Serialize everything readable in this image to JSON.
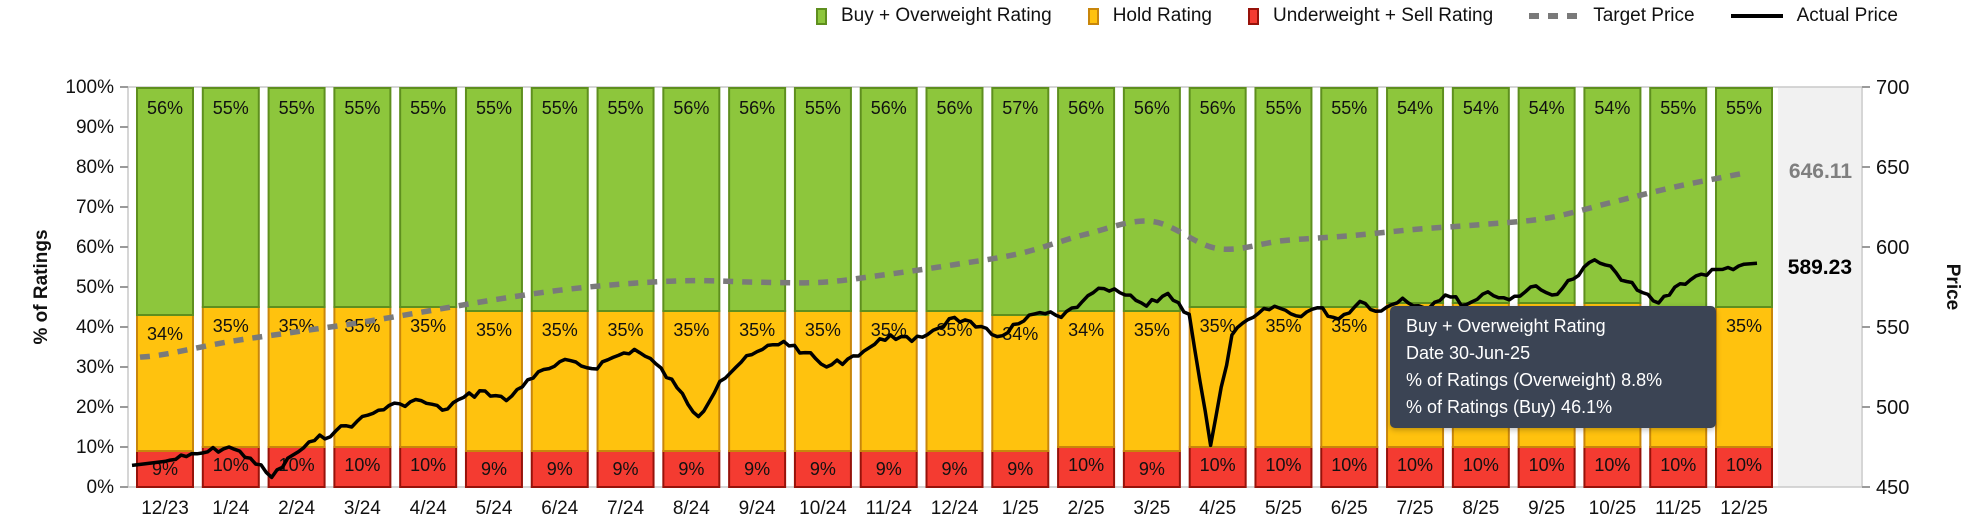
{
  "legend": {
    "items": [
      {
        "label": "Buy + Overweight Rating",
        "marker": "bar-swatch-icon",
        "type": "bar",
        "color": "#8dc63c",
        "border": "#5e8f1e"
      },
      {
        "label": "Hold Rating",
        "marker": "bar-swatch-icon",
        "type": "bar",
        "color": "#ffc20e",
        "border": "#c8860b"
      },
      {
        "label": "Underweight + Sell Rating",
        "marker": "bar-swatch-icon",
        "type": "bar",
        "color": "#f43b31",
        "border": "#97120a"
      },
      {
        "label": "Target Price",
        "marker": "dashed-line-icon",
        "type": "dash",
        "color": "#7a7a7a"
      },
      {
        "label": "Actual Price",
        "marker": "solid-line-icon",
        "type": "line",
        "color": "#000000"
      }
    ]
  },
  "tooltip": {
    "lines": [
      "Buy + Overweight Rating",
      "Date 30-Jun-25",
      "% of Ratings (Overweight) 8.8%",
      "% of Ratings (Buy) 46.1%"
    ],
    "bg": "#3b4454",
    "text_color": "#ffffff"
  },
  "callouts": {
    "target_price": "646.11",
    "target_color": "#7f7f7f",
    "actual_price": "589.23",
    "actual_color": "#000000"
  },
  "chart_data": {
    "type": "bar",
    "subtype": "stacked-bars-with-price-lines",
    "categories": [
      "12/23",
      "1/24",
      "2/24",
      "3/24",
      "4/24",
      "5/24",
      "6/24",
      "7/24",
      "8/24",
      "9/24",
      "10/24",
      "11/24",
      "12/24",
      "1/25",
      "2/25",
      "3/25",
      "4/25",
      "5/25",
      "6/25",
      "7/25",
      "8/25",
      "9/25",
      "10/25",
      "11/25",
      "12/25"
    ],
    "series": [
      {
        "name": "Buy + Overweight Rating",
        "render": "bar",
        "color": "#8dc63c",
        "border": "#5e8f1e",
        "values": [
          56,
          55,
          55,
          55,
          55,
          55,
          55,
          55,
          56,
          56,
          55,
          56,
          56,
          57,
          56,
          56,
          56,
          55,
          55,
          54,
          54,
          54,
          54,
          55,
          55
        ]
      },
      {
        "name": "Hold Rating",
        "render": "bar",
        "color": "#ffc20e",
        "border": "#c8860b",
        "values": [
          34,
          35,
          35,
          35,
          35,
          35,
          35,
          35,
          35,
          35,
          35,
          35,
          35,
          34,
          34,
          35,
          35,
          35,
          35,
          36,
          36,
          36,
          36,
          35,
          35
        ]
      },
      {
        "name": "Underweight + Sell Rating",
        "render": "bar",
        "color": "#f43b31",
        "border": "#97120a",
        "values": [
          9,
          10,
          10,
          10,
          10,
          9,
          9,
          9,
          9,
          9,
          9,
          9,
          9,
          9,
          10,
          9,
          10,
          10,
          10,
          10,
          10,
          10,
          10,
          10,
          10
        ]
      },
      {
        "name": "Target Price",
        "render": "line",
        "dashed": true,
        "color": "#7a7a7a",
        "axis": "right",
        "values": [
          533,
          541,
          547,
          553,
          560,
          567,
          573,
          577,
          579,
          578,
          578,
          583,
          589,
          596,
          608,
          616,
          599,
          604,
          607,
          611,
          614,
          618,
          628,
          638,
          646.11
        ]
      },
      {
        "name": "Actual Price",
        "render": "line",
        "dashed": false,
        "color": "#000000",
        "axis": "right",
        "points_per_category": 3,
        "values_fine": [
          466,
          469,
          472,
          475,
          468,
          456,
          470,
          479,
          485,
          491,
          498,
          502,
          504,
          498,
          506,
          510,
          504,
          517,
          524,
          529,
          524,
          531,
          536,
          527,
          512,
          494,
          516,
          528,
          536,
          541,
          534,
          525,
          530,
          537,
          545,
          541,
          548,
          556,
          550,
          544,
          552,
          559,
          556,
          566,
          574,
          570,
          563,
          571,
          558,
          476,
          545,
          556,
          563,
          557,
          562,
          555,
          566,
          560,
          568,
          562,
          570,
          564,
          572,
          567,
          575,
          570,
          580,
          592,
          584,
          573,
          565,
          577,
          583,
          586,
          589.23
        ]
      }
    ],
    "bar_label_suffix": "%",
    "left_axis": {
      "label": "% of Ratings",
      "min": 0,
      "max": 100,
      "tick_step": 10,
      "tick_labels": [
        "0%",
        "10%",
        "20%",
        "30%",
        "40%",
        "50%",
        "60%",
        "70%",
        "80%",
        "90%",
        "100%"
      ]
    },
    "right_axis": {
      "label": "Price",
      "min": 450,
      "max": 700,
      "tick_step": 50,
      "tick_labels": [
        "450",
        "500",
        "550",
        "600",
        "650",
        "700"
      ]
    },
    "grid": false,
    "legend_position": "top-right",
    "plot_band_color": "#f1f1f1"
  }
}
